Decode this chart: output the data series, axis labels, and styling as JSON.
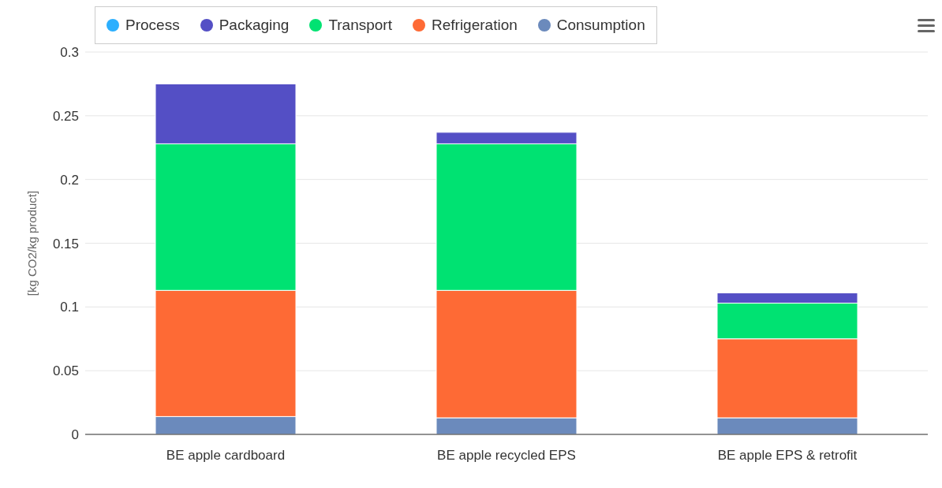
{
  "chart_data": {
    "type": "bar",
    "stacked": true,
    "ylabel": "[kg CO2/kg product]",
    "categories": [
      "BE apple cardboard",
      "BE apple recycled EPS",
      "BE apple EPS & retrofit"
    ],
    "series": [
      {
        "name": "Consumption",
        "color": "#6b8abc",
        "values": [
          0.014,
          0.013,
          0.013
        ]
      },
      {
        "name": "Refrigeration",
        "color": "#fe6a35",
        "values": [
          0.099,
          0.1,
          0.062
        ]
      },
      {
        "name": "Transport",
        "color": "#00e272",
        "values": [
          0.115,
          0.115,
          0.028
        ]
      },
      {
        "name": "Packaging",
        "color": "#544fc5",
        "values": [
          0.047,
          0.009,
          0.008
        ]
      },
      {
        "name": "Process",
        "color": "#2caffe",
        "values": [
          0,
          0,
          0
        ]
      }
    ],
    "ylim": [
      0,
      0.3
    ],
    "yticks": [
      0,
      0.05,
      0.1,
      0.15,
      0.2,
      0.25,
      0.3
    ],
    "grid": "y",
    "legend": "top"
  }
}
